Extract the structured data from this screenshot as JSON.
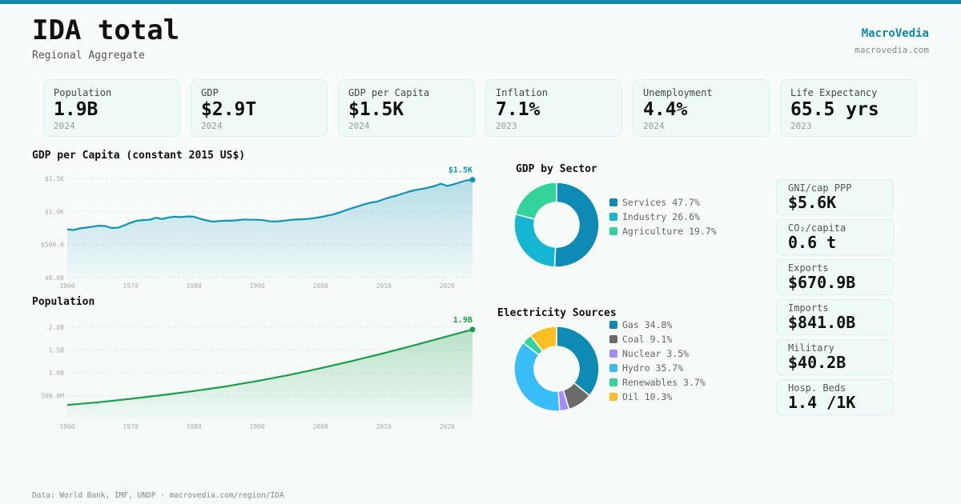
{
  "header": {
    "title": "IDA total",
    "subtitle": "Regional Aggregate",
    "brand": "MacroVedia",
    "brand_url": "macrovedia.com"
  },
  "kpis": [
    {
      "label": "Population",
      "value": "1.9B",
      "year": "2024"
    },
    {
      "label": "GDP",
      "value": "$2.9T",
      "year": "2024"
    },
    {
      "label": "GDP per Capita",
      "value": "$1.5K",
      "year": "2024"
    },
    {
      "label": "Inflation",
      "value": "7.1%",
      "year": "2023"
    },
    {
      "label": "Unemployment",
      "value": "4.4%",
      "year": "2024"
    },
    {
      "label": "Life Expectancy",
      "value": "65.5 yrs",
      "year": "2023"
    }
  ],
  "side_stats": [
    {
      "label": "GNI/cap PPP",
      "value": "$5.6K"
    },
    {
      "label": "CO₂/capita",
      "value": "0.6 t"
    },
    {
      "label": "Exports",
      "value": "$670.9B"
    },
    {
      "label": "Imports",
      "value": "$841.0B"
    },
    {
      "label": "Military",
      "value": "$40.2B"
    },
    {
      "label": "Hosp. Beds",
      "value": "1.4 /1K"
    }
  ],
  "colors": {
    "accent": "#0e8aa8",
    "gdp_line": "#1293b5",
    "pop_line": "#1a9e4a"
  },
  "chart_data": [
    {
      "type": "area",
      "title": "GDP per Capita (constant 2015 US$)",
      "end_label": "$1.5K",
      "xlim": [
        1960,
        2024
      ],
      "ylim": [
        0,
        1500
      ],
      "x_ticks": [
        1960,
        1970,
        1980,
        1990,
        2000,
        2010,
        2020
      ],
      "y_ticks": [
        {
          "v": 0,
          "label": "$0.00"
        },
        {
          "v": 500,
          "label": "$500.0"
        },
        {
          "v": 1000,
          "label": "$1.0K"
        },
        {
          "v": 1500,
          "label": "$1.5K"
        }
      ],
      "grid": true,
      "x": [
        1960,
        1961,
        1962,
        1963,
        1964,
        1965,
        1966,
        1967,
        1968,
        1969,
        1970,
        1971,
        1972,
        1973,
        1974,
        1975,
        1976,
        1977,
        1978,
        1979,
        1980,
        1981,
        1982,
        1983,
        1984,
        1985,
        1986,
        1987,
        1988,
        1989,
        1990,
        1991,
        1992,
        1993,
        1994,
        1995,
        1996,
        1997,
        1998,
        1999,
        2000,
        2001,
        2002,
        2003,
        2004,
        2005,
        2006,
        2007,
        2008,
        2009,
        2010,
        2011,
        2012,
        2013,
        2014,
        2015,
        2016,
        2017,
        2018,
        2019,
        2020,
        2021,
        2022,
        2023,
        2024
      ],
      "values": [
        730,
        720,
        745,
        755,
        770,
        785,
        780,
        750,
        755,
        790,
        830,
        860,
        870,
        875,
        905,
        885,
        910,
        920,
        915,
        925,
        920,
        890,
        865,
        845,
        855,
        860,
        860,
        870,
        880,
        875,
        875,
        868,
        850,
        848,
        858,
        868,
        878,
        882,
        888,
        900,
        915,
        935,
        955,
        985,
        1020,
        1050,
        1080,
        1110,
        1135,
        1150,
        1185,
        1215,
        1240,
        1270,
        1300,
        1325,
        1340,
        1360,
        1385,
        1420,
        1385,
        1410,
        1440,
        1470,
        1480
      ]
    },
    {
      "type": "area",
      "title": "Population",
      "end_label": "1.9B",
      "xlim": [
        1960,
        2024
      ],
      "ylim": [
        0,
        2000
      ],
      "x_ticks": [
        1960,
        1970,
        1980,
        1990,
        2000,
        2010,
        2020
      ],
      "y_ticks": [
        {
          "v": 500,
          "label": "500.0M"
        },
        {
          "v": 1000,
          "label": "1.0B"
        },
        {
          "v": 1500,
          "label": "1.5B"
        },
        {
          "v": 2000,
          "label": "2.0B"
        }
      ],
      "grid": true,
      "x": [
        1960,
        1965,
        1970,
        1975,
        1980,
        1985,
        1990,
        1995,
        2000,
        2005,
        2010,
        2015,
        2020,
        2024
      ],
      "values": [
        295,
        355,
        430,
        510,
        600,
        700,
        820,
        950,
        1100,
        1260,
        1430,
        1610,
        1800,
        1950
      ]
    },
    {
      "type": "pie",
      "title": "GDP by Sector",
      "categories": [
        "Services",
        "Industry",
        "Agriculture"
      ],
      "values": [
        47.7,
        26.6,
        19.7
      ],
      "display": [
        "Services 47.7%",
        "Industry 26.6%",
        "Agriculture 19.7%"
      ],
      "colors": [
        "#0e8bb5",
        "#14b6d1",
        "#34d399"
      ]
    },
    {
      "type": "pie",
      "title": "Electricity Sources",
      "categories": [
        "Gas",
        "Coal",
        "Nuclear",
        "Hydro",
        "Renewables",
        "Oil"
      ],
      "values": [
        34.8,
        9.1,
        3.5,
        35.7,
        3.7,
        10.3
      ],
      "display": [
        "Gas 34.8%",
        "Coal 9.1%",
        "Nuclear 3.5%",
        "Hydro 35.7%",
        "Renewables 3.7%",
        "Oil 10.3%"
      ],
      "colors": [
        "#0e8bb5",
        "#6b6b6b",
        "#a78bfa",
        "#38bdf8",
        "#34d399",
        "#fbbf24"
      ]
    }
  ],
  "footer": "Data: World Bank, IMF, UNDP · macrovedia.com/region/IDA"
}
